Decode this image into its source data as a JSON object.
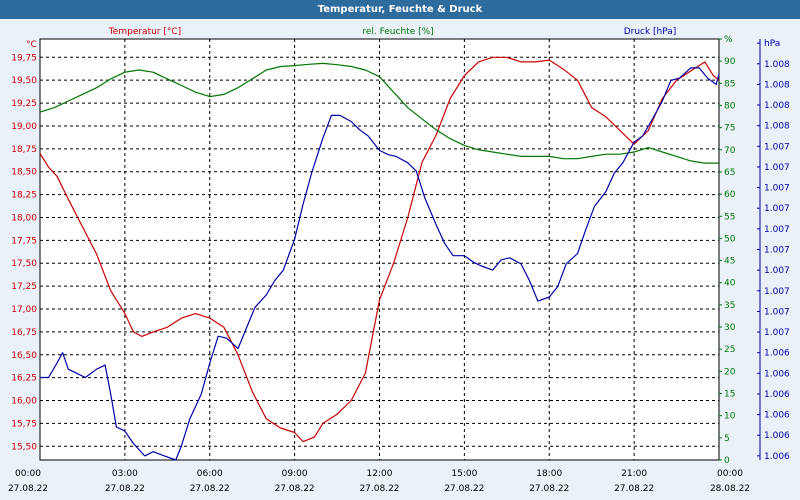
{
  "window": {
    "title": "Temperatur, Feuchte & Druck"
  },
  "colors": {
    "temperature": "#cc0000",
    "humidity": "#007700",
    "pressure": "#0000aa",
    "background": "#ffffff",
    "grid": "#000000"
  },
  "chart_data": {
    "type": "line",
    "title": "Temperatur, Feuchte & Druck",
    "x_ticks": [
      {
        "label": "00:00",
        "date": "27.08.22",
        "hour": 0
      },
      {
        "label": "03:00",
        "date": "27.08.22",
        "hour": 3
      },
      {
        "label": "06:00",
        "date": "27.08.22",
        "hour": 6
      },
      {
        "label": "09:00",
        "date": "27.08.22",
        "hour": 9
      },
      {
        "label": "12:00",
        "date": "27.08.22",
        "hour": 12
      },
      {
        "label": "15:00",
        "date": "27.08.22",
        "hour": 15
      },
      {
        "label": "18:00",
        "date": "27.08.22",
        "hour": 18
      },
      {
        "label": "21:00",
        "date": "27.08.22",
        "hour": 21
      },
      {
        "label": "00:00",
        "date": "28.08.22",
        "hour": 24
      }
    ],
    "x_range": [
      0,
      24
    ],
    "axes": {
      "temperature": {
        "title": "Temperatur [°C]",
        "unit": "°C",
        "range": [
          15.35,
          19.95
        ],
        "ticks": [
          15.5,
          15.75,
          16.0,
          16.25,
          16.5,
          16.75,
          17.0,
          17.25,
          17.5,
          17.75,
          18.0,
          18.25,
          18.5,
          18.75,
          19.0,
          19.25,
          19.5,
          19.75
        ],
        "tick_labels": [
          "15,50",
          "15,75",
          "16,00",
          "16,25",
          "16,50",
          "16,75",
          "17,00",
          "17,25",
          "17,50",
          "17,75",
          "18,00",
          "18,25",
          "18,50",
          "18,75",
          "19,00",
          "19,25",
          "19,50",
          "19,75"
        ]
      },
      "humidity": {
        "title": "rel. Feuchte [%]",
        "unit": "%",
        "range": [
          0,
          95
        ],
        "ticks": [
          0,
          5,
          10,
          15,
          20,
          25,
          30,
          35,
          40,
          45,
          50,
          55,
          60,
          65,
          70,
          75,
          80,
          85,
          90,
          95
        ],
        "tick_labels": [
          "0",
          "5",
          "10",
          "15",
          "20",
          "25",
          "30",
          "35",
          "40",
          "45",
          "50",
          "55",
          "60",
          "65",
          "70",
          "75",
          "80",
          "85",
          "90",
          "%"
        ]
      },
      "pressure": {
        "title": "Druck [hPa]",
        "unit": "hPa",
        "range": [
          1005.98,
          1008.02
        ],
        "ticks": [
          1006.0,
          1006.1,
          1006.2,
          1006.3,
          1006.4,
          1006.5,
          1006.6,
          1006.7,
          1006.8,
          1006.9,
          1007.0,
          1007.1,
          1007.2,
          1007.3,
          1007.4,
          1007.5,
          1007.6,
          1007.7,
          1007.8,
          1007.9,
          1008.0
        ],
        "tick_labels": [
          "1.006",
          "1.006",
          "1.006",
          "1.006",
          "1.006",
          "1.006",
          "1.007",
          "1.007",
          "1.007",
          "1.007",
          "1.007",
          "1.007",
          "1.007",
          "1.007",
          "1.007",
          "1.007",
          "1.008",
          "1.008",
          "1.008",
          "1.008",
          "hPa"
        ]
      }
    },
    "series": [
      {
        "name": "Temperatur [°C]",
        "axis": "temperature",
        "color": "#cc0000",
        "x": [
          0,
          0.3,
          0.6,
          1,
          1.5,
          2,
          2.5,
          3,
          3.3,
          3.6,
          4,
          4.5,
          5,
          5.5,
          6,
          6.5,
          7,
          7.5,
          8,
          8.5,
          9,
          9.3,
          9.7,
          10,
          10.5,
          11,
          11.5,
          12,
          12.5,
          13,
          13.5,
          14,
          14.5,
          15,
          15.5,
          16,
          16.5,
          17,
          17.5,
          18,
          18.5,
          19,
          19.5,
          20,
          20.5,
          21,
          21.5,
          22,
          22.5,
          23,
          23.5,
          23.8,
          24
        ],
        "values": [
          18.7,
          18.55,
          18.45,
          18.2,
          17.9,
          17.6,
          17.2,
          16.95,
          16.75,
          16.7,
          16.75,
          16.8,
          16.9,
          16.95,
          16.9,
          16.8,
          16.5,
          16.1,
          15.8,
          15.7,
          15.65,
          15.55,
          15.6,
          15.75,
          15.85,
          16.0,
          16.3,
          17.1,
          17.5,
          18.0,
          18.6,
          18.9,
          19.3,
          19.55,
          19.7,
          19.75,
          19.75,
          19.7,
          19.7,
          19.72,
          19.62,
          19.5,
          19.2,
          19.1,
          18.95,
          18.8,
          18.95,
          19.3,
          19.5,
          19.6,
          19.7,
          19.55,
          19.5
        ]
      },
      {
        "name": "rel. Feuchte [%]",
        "axis": "humidity",
        "color": "#007700",
        "x": [
          0,
          0.5,
          1,
          1.5,
          2,
          2.5,
          3,
          3.5,
          4,
          4.5,
          5,
          5.5,
          6,
          6.5,
          7,
          7.5,
          8,
          8.5,
          9,
          9.5,
          10,
          10.5,
          11,
          11.5,
          12,
          12.5,
          13,
          13.5,
          14,
          14.5,
          15,
          15.5,
          16,
          16.5,
          17,
          17.5,
          18,
          18.5,
          19,
          19.5,
          20,
          20.5,
          21,
          21.5,
          22,
          22.5,
          23,
          23.5,
          24
        ],
        "values": [
          78.5,
          79.5,
          81,
          82.5,
          84,
          86,
          87.5,
          88,
          87.5,
          86,
          84.5,
          83,
          82,
          82.5,
          84,
          86,
          88,
          88.8,
          89,
          89.3,
          89.5,
          89.2,
          88.8,
          88,
          86.5,
          83,
          79.5,
          77,
          74.5,
          72.5,
          71,
          70,
          69.5,
          69,
          68.5,
          68.5,
          68.5,
          68,
          68,
          68.5,
          69,
          69,
          69.5,
          70.5,
          69.5,
          68.5,
          67.5,
          67,
          67
        ]
      },
      {
        "name": "Druck [hPa]",
        "axis": "pressure",
        "color": "#0000aa",
        "x": [
          0,
          0.3,
          0.6,
          0.8,
          1,
          1.3,
          1.6,
          2,
          2.3,
          2.5,
          2.7,
          3,
          3.3,
          3.7,
          4,
          4.4,
          4.8,
          5,
          5.3,
          5.7,
          6,
          6.3,
          6.6,
          7,
          7.3,
          7.6,
          8,
          8.3,
          8.6,
          9,
          9.3,
          9.6,
          10,
          10.3,
          10.6,
          11,
          11.3,
          11.6,
          12,
          12.3,
          12.6,
          13,
          13.3,
          13.6,
          14,
          14.3,
          14.6,
          15,
          15.3,
          15.6,
          16,
          16.3,
          16.6,
          17,
          17.3,
          17.6,
          18,
          18.3,
          18.6,
          19,
          19.3,
          19.6,
          20,
          20.3,
          20.6,
          21,
          21.3,
          21.6,
          22,
          22.3,
          22.6,
          23,
          23.3,
          23.6,
          23.9,
          24
        ],
        "values": [
          1006.38,
          1006.38,
          1006.45,
          1006.5,
          1006.42,
          1006.4,
          1006.38,
          1006.42,
          1006.44,
          1006.3,
          1006.14,
          1006.12,
          1006.06,
          1006.0,
          1006.02,
          1006.0,
          1005.98,
          1006.05,
          1006.18,
          1006.3,
          1006.45,
          1006.58,
          1006.57,
          1006.52,
          1006.62,
          1006.72,
          1006.78,
          1006.85,
          1006.9,
          1007.05,
          1007.22,
          1007.37,
          1007.54,
          1007.65,
          1007.65,
          1007.62,
          1007.58,
          1007.55,
          1007.48,
          1007.46,
          1007.45,
          1007.42,
          1007.38,
          1007.25,
          1007.12,
          1007.03,
          1006.97,
          1006.97,
          1006.94,
          1006.92,
          1006.9,
          1006.95,
          1006.96,
          1006.93,
          1006.85,
          1006.75,
          1006.77,
          1006.82,
          1006.93,
          1006.98,
          1007.1,
          1007.21,
          1007.28,
          1007.37,
          1007.42,
          1007.52,
          1007.55,
          1007.62,
          1007.72,
          1007.82,
          1007.83,
          1007.88,
          1007.88,
          1007.83,
          1007.8,
          1007.85
        ]
      }
    ]
  }
}
